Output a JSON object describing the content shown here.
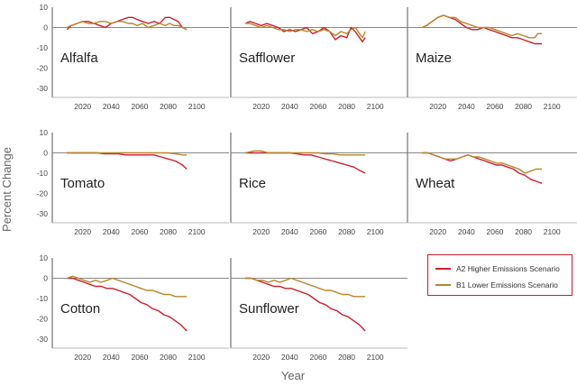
{
  "figure": {
    "ylabel": "Percent Change",
    "xlabel": "Year",
    "xticks": [
      2020,
      2040,
      2060,
      2080,
      2100
    ],
    "yticks": [
      10,
      0,
      -10,
      -20,
      -30
    ]
  },
  "legend": {
    "placement": "right",
    "items": [
      {
        "label": "A2 Higher Emissions Scenario",
        "color": "#cc1f2e"
      },
      {
        "label": "B1 Lower Emissions Scenario",
        "color": "#b8862b"
      }
    ]
  },
  "chart_data": [
    {
      "type": "line",
      "title": "Alfalfa",
      "xlim": [
        2005,
        2110
      ],
      "ylim": [
        -30,
        10
      ],
      "series": [
        {
          "name": "A2 Higher Emissions Scenario",
          "x": [
            2009,
            2012,
            2016,
            2020,
            2024,
            2028,
            2032,
            2036,
            2040,
            2044,
            2048,
            2052,
            2055,
            2058,
            2062,
            2066,
            2070,
            2074,
            2078,
            2081,
            2084,
            2087,
            2090,
            2093
          ],
          "y": [
            -1,
            1,
            2,
            3,
            3,
            2,
            1,
            0,
            2,
            3,
            4,
            5,
            5,
            4,
            3,
            2,
            3,
            2,
            5,
            5,
            4,
            3,
            0,
            -1
          ]
        },
        {
          "name": "B1 Lower Emissions Scenario",
          "x": [
            2009,
            2012,
            2016,
            2020,
            2024,
            2028,
            2032,
            2036,
            2040,
            2044,
            2048,
            2052,
            2055,
            2058,
            2062,
            2066,
            2070,
            2074,
            2078,
            2081,
            2084,
            2087,
            2090,
            2093
          ],
          "y": [
            0,
            1,
            2,
            3,
            2,
            2,
            3,
            3,
            2,
            3,
            3,
            2,
            2,
            1,
            2,
            0,
            1,
            2,
            1,
            2,
            1,
            1,
            0,
            -1
          ]
        }
      ]
    },
    {
      "type": "line",
      "title": "Safflower",
      "xlim": [
        2005,
        2110
      ],
      "ylim": [
        -30,
        10
      ],
      "series": [
        {
          "name": "A2 Higher Emissions Scenario",
          "x": [
            2009,
            2012,
            2016,
            2020,
            2024,
            2028,
            2032,
            2036,
            2040,
            2044,
            2048,
            2052,
            2056,
            2060,
            2064,
            2068,
            2072,
            2076,
            2080,
            2083,
            2086,
            2089,
            2091,
            2093
          ],
          "y": [
            2,
            3,
            2,
            1,
            2,
            1,
            0,
            -2,
            -1,
            -2,
            -1,
            0,
            -3,
            -2,
            0,
            -2,
            -6,
            -4,
            -5,
            0,
            -2,
            -5,
            -7,
            -5
          ]
        },
        {
          "name": "B1 Lower Emissions Scenario",
          "x": [
            2009,
            2012,
            2016,
            2020,
            2024,
            2028,
            2032,
            2036,
            2040,
            2044,
            2048,
            2052,
            2056,
            2060,
            2064,
            2068,
            2072,
            2076,
            2080,
            2083,
            2086,
            2089,
            2091,
            2093
          ],
          "y": [
            2,
            2,
            1,
            0,
            1,
            0,
            -1,
            -1,
            -2,
            -1,
            -1,
            -2,
            -1,
            -2,
            -1,
            -2,
            -4,
            -2,
            -3,
            -1,
            0,
            -3,
            -5,
            -2
          ]
        }
      ]
    },
    {
      "type": "line",
      "title": "Maize",
      "xlim": [
        2005,
        2110
      ],
      "ylim": [
        -30,
        10
      ],
      "series": [
        {
          "name": "A2 Higher Emissions Scenario",
          "x": [
            2009,
            2012,
            2016,
            2020,
            2024,
            2028,
            2032,
            2036,
            2040,
            2044,
            2048,
            2052,
            2056,
            2060,
            2064,
            2068,
            2072,
            2076,
            2080,
            2084,
            2088,
            2090,
            2093
          ],
          "y": [
            0,
            1,
            3,
            5,
            6,
            5,
            4,
            2,
            0,
            -1,
            -1,
            0,
            -1,
            -2,
            -3,
            -4,
            -5,
            -5,
            -6,
            -7,
            -8,
            -8,
            -8
          ]
        },
        {
          "name": "B1 Lower Emissions Scenario",
          "x": [
            2009,
            2012,
            2016,
            2020,
            2024,
            2028,
            2032,
            2036,
            2040,
            2044,
            2048,
            2052,
            2056,
            2060,
            2064,
            2068,
            2072,
            2076,
            2080,
            2084,
            2088,
            2090,
            2093
          ],
          "y": [
            0,
            1,
            3,
            5,
            6,
            5,
            5,
            3,
            2,
            1,
            0,
            0,
            0,
            -1,
            -2,
            -3,
            -4,
            -3,
            -4,
            -5,
            -5,
            -3,
            -3
          ]
        }
      ]
    },
    {
      "type": "line",
      "title": "Tomato",
      "xlim": [
        2005,
        2110
      ],
      "ylim": [
        -30,
        10
      ],
      "series": [
        {
          "name": "A2 Higher Emissions Scenario",
          "x": [
            2009,
            2015,
            2020,
            2025,
            2030,
            2035,
            2040,
            2045,
            2050,
            2055,
            2060,
            2065,
            2070,
            2075,
            2080,
            2085,
            2090,
            2093
          ],
          "y": [
            0,
            0,
            0,
            0,
            0,
            -0.5,
            -0.5,
            -0.5,
            -1,
            -1,
            -1,
            -1,
            -1,
            -2,
            -3,
            -4,
            -6,
            -8
          ]
        },
        {
          "name": "B1 Lower Emissions Scenario",
          "x": [
            2009,
            2015,
            2020,
            2025,
            2030,
            2035,
            2040,
            2045,
            2050,
            2055,
            2060,
            2065,
            2070,
            2075,
            2080,
            2085,
            2090,
            2093
          ],
          "y": [
            0,
            0,
            0,
            0,
            0,
            0,
            0,
            0,
            0,
            0,
            0,
            0,
            0,
            0,
            0,
            -0.5,
            -1,
            -1
          ]
        }
      ]
    },
    {
      "type": "line",
      "title": "Rice",
      "xlim": [
        2005,
        2110
      ],
      "ylim": [
        -30,
        10
      ],
      "series": [
        {
          "name": "A2 Higher Emissions Scenario",
          "x": [
            2009,
            2015,
            2020,
            2025,
            2030,
            2035,
            2040,
            2045,
            2050,
            2055,
            2060,
            2065,
            2070,
            2075,
            2080,
            2085,
            2090,
            2093
          ],
          "y": [
            0,
            0,
            0,
            0,
            0,
            0,
            0,
            -0.5,
            -1,
            -1,
            -2,
            -3,
            -4,
            -5,
            -6,
            -7,
            -9,
            -10
          ]
        },
        {
          "name": "B1 Lower Emissions Scenario",
          "x": [
            2009,
            2015,
            2020,
            2025,
            2030,
            2035,
            2040,
            2045,
            2050,
            2055,
            2060,
            2065,
            2070,
            2075,
            2080,
            2085,
            2090,
            2093
          ],
          "y": [
            0,
            1,
            1,
            0,
            0,
            0,
            0,
            0,
            0,
            0,
            0,
            -0.5,
            -0.5,
            -1,
            -1,
            -1,
            -1,
            -1
          ]
        }
      ]
    },
    {
      "type": "line",
      "title": "Wheat",
      "xlim": [
        2005,
        2110
      ],
      "ylim": [
        -30,
        10
      ],
      "series": [
        {
          "name": "A2 Higher Emissions Scenario",
          "x": [
            2009,
            2013,
            2017,
            2021,
            2025,
            2029,
            2033,
            2037,
            2041,
            2045,
            2049,
            2053,
            2057,
            2061,
            2065,
            2069,
            2073,
            2077,
            2081,
            2085,
            2089,
            2093
          ],
          "y": [
            0,
            0,
            -1,
            -2,
            -3,
            -4,
            -3,
            -2,
            -1,
            -2,
            -3,
            -4,
            -5,
            -6,
            -6,
            -7,
            -8,
            -10,
            -11,
            -13,
            -14,
            -15
          ]
        },
        {
          "name": "B1 Lower Emissions Scenario",
          "x": [
            2009,
            2013,
            2017,
            2021,
            2025,
            2029,
            2033,
            2037,
            2041,
            2045,
            2049,
            2053,
            2057,
            2061,
            2065,
            2069,
            2073,
            2077,
            2081,
            2085,
            2089,
            2093
          ],
          "y": [
            0,
            0,
            -1,
            -2,
            -3,
            -3,
            -3,
            -2,
            -1,
            -2,
            -2,
            -3,
            -4,
            -5,
            -5,
            -6,
            -7,
            -8,
            -10,
            -9,
            -8,
            -8
          ]
        }
      ]
    },
    {
      "type": "line",
      "title": "Cotton",
      "xlim": [
        2005,
        2110
      ],
      "ylim": [
        -30,
        10
      ],
      "series": [
        {
          "name": "A2 Higher Emissions Scenario",
          "x": [
            2009,
            2013,
            2017,
            2021,
            2025,
            2029,
            2033,
            2037,
            2041,
            2045,
            2049,
            2053,
            2057,
            2061,
            2065,
            2069,
            2073,
            2077,
            2081,
            2085,
            2089,
            2093
          ],
          "y": [
            0,
            0,
            -1,
            -2,
            -3,
            -4,
            -4,
            -5,
            -5,
            -6,
            -7,
            -8,
            -10,
            -12,
            -13,
            -15,
            -16,
            -18,
            -19,
            -21,
            -23,
            -26
          ]
        },
        {
          "name": "B1 Lower Emissions Scenario",
          "x": [
            2009,
            2013,
            2017,
            2021,
            2025,
            2029,
            2033,
            2037,
            2041,
            2045,
            2049,
            2053,
            2057,
            2061,
            2065,
            2069,
            2073,
            2077,
            2081,
            2085,
            2089,
            2093
          ],
          "y": [
            0,
            1,
            0,
            -1,
            -2,
            -1,
            -2,
            -1,
            0,
            -1,
            -2,
            -3,
            -4,
            -5,
            -6,
            -6,
            -7,
            -8,
            -8,
            -9,
            -9,
            -9
          ]
        }
      ]
    },
    {
      "type": "line",
      "title": "Sunflower",
      "xlim": [
        2005,
        2110
      ],
      "ylim": [
        -30,
        10
      ],
      "series": [
        {
          "name": "A2 Higher Emissions Scenario",
          "x": [
            2009,
            2013,
            2017,
            2021,
            2025,
            2029,
            2033,
            2037,
            2041,
            2045,
            2049,
            2053,
            2057,
            2061,
            2065,
            2069,
            2073,
            2077,
            2081,
            2085,
            2089,
            2093
          ],
          "y": [
            0,
            0,
            -1,
            -2,
            -3,
            -4,
            -4,
            -5,
            -5,
            -6,
            -7,
            -8,
            -10,
            -12,
            -13,
            -15,
            -16,
            -18,
            -19,
            -21,
            -23,
            -26
          ]
        },
        {
          "name": "B1 Lower Emissions Scenario",
          "x": [
            2009,
            2013,
            2017,
            2021,
            2025,
            2029,
            2033,
            2037,
            2041,
            2045,
            2049,
            2053,
            2057,
            2061,
            2065,
            2069,
            2073,
            2077,
            2081,
            2085,
            2089,
            2093
          ],
          "y": [
            0,
            0,
            -1,
            -1,
            -2,
            -1,
            -2,
            -1,
            0,
            -1,
            -2,
            -3,
            -4,
            -5,
            -6,
            -6,
            -7,
            -8,
            -8,
            -9,
            -9,
            -9
          ]
        }
      ]
    }
  ]
}
